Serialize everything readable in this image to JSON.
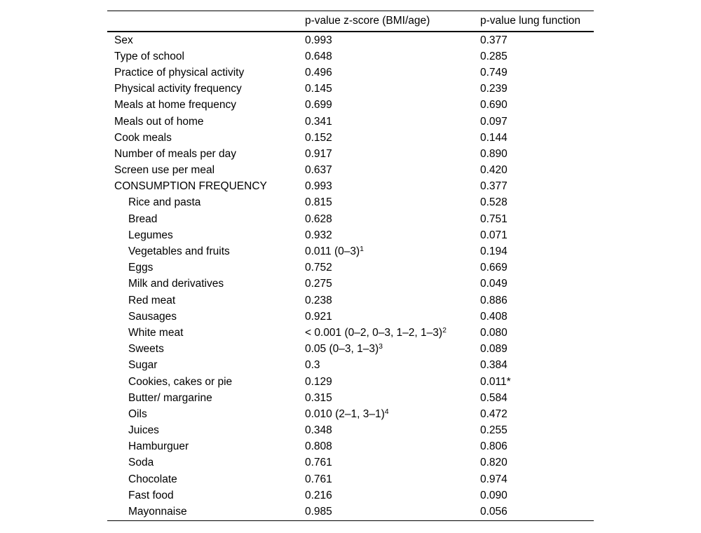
{
  "table": {
    "headers": {
      "variable": "",
      "col_bmi": "p-value z-score (BMI/age)",
      "col_lung": "p-value lung function"
    },
    "rows": [
      {
        "label": "Sex",
        "indent": 0,
        "p_bmi": "0.993",
        "p_lung": "0.377"
      },
      {
        "label": "Type of school",
        "indent": 0,
        "p_bmi": "0.648",
        "p_lung": "0.285"
      },
      {
        "label": "Practice of physical activity",
        "indent": 0,
        "p_bmi": "0.496",
        "p_lung": "0.749"
      },
      {
        "label": "Physical activity frequency",
        "indent": 0,
        "p_bmi": "0.145",
        "p_lung": "0.239"
      },
      {
        "label": "Meals at home frequency",
        "indent": 0,
        "p_bmi": "0.699",
        "p_lung": "0.690"
      },
      {
        "label": "Meals out of home",
        "indent": 0,
        "p_bmi": "0.341",
        "p_lung": "0.097"
      },
      {
        "label": "Cook meals",
        "indent": 0,
        "p_bmi": "0.152",
        "p_lung": "0.144"
      },
      {
        "label": "Number of meals per day",
        "indent": 0,
        "p_bmi": "0.917",
        "p_lung": "0.890"
      },
      {
        "label": "Screen use per meal",
        "indent": 0,
        "p_bmi": "0.637",
        "p_lung": "0.420"
      },
      {
        "label": "CONSUMPTION FREQUENCY",
        "indent": 0,
        "p_bmi": "0.993",
        "p_lung": "0.377"
      },
      {
        "label": "Rice and pasta",
        "indent": 1,
        "p_bmi": "0.815",
        "p_lung": "0.528"
      },
      {
        "label": "Bread",
        "indent": 1,
        "p_bmi": "0.628",
        "p_lung": "0.751"
      },
      {
        "label": "Legumes",
        "indent": 1,
        "p_bmi": "0.932",
        "p_lung": "0.071"
      },
      {
        "label": "Vegetables and fruits",
        "indent": 1,
        "p_bmi": "0.011 (0–3)",
        "p_bmi_sup": "1",
        "p_lung": "0.194"
      },
      {
        "label": "Eggs",
        "indent": 1,
        "p_bmi": "0.752",
        "p_lung": "0.669"
      },
      {
        "label": "Milk and derivatives",
        "indent": 1,
        "p_bmi": "0.275",
        "p_lung": "0.049"
      },
      {
        "label": "Red meat",
        "indent": 1,
        "p_bmi": "0.238",
        "p_lung": "0.886"
      },
      {
        "label": "Sausages",
        "indent": 1,
        "p_bmi": "0.921",
        "p_lung": "0.408"
      },
      {
        "label": "White meat",
        "indent": 1,
        "p_bmi": "< 0.001 (0–2, 0–3, 1–2, 1–3)",
        "p_bmi_sup": "2",
        "p_lung": "0.080"
      },
      {
        "label": "Sweets",
        "indent": 1,
        "p_bmi": "0.05 (0–3, 1–3)",
        "p_bmi_sup": "3",
        "p_lung": "0.089"
      },
      {
        "label": "Sugar",
        "indent": 1,
        "p_bmi": "0.3",
        "p_lung": "0.384"
      },
      {
        "label": "Cookies, cakes or pie",
        "indent": 1,
        "p_bmi": "0.129",
        "p_lung": "0.011*"
      },
      {
        "label": "Butter/ margarine",
        "indent": 1,
        "p_bmi": "0.315",
        "p_lung": "0.584"
      },
      {
        "label": "Oils",
        "indent": 1,
        "p_bmi": "0.010 (2–1, 3–1)",
        "p_bmi_sup": "4",
        "p_lung": "0.472"
      },
      {
        "label": "Juices",
        "indent": 1,
        "p_bmi": "0.348",
        "p_lung": "0.255"
      },
      {
        "label": "Hamburguer",
        "indent": 1,
        "p_bmi": "0.808",
        "p_lung": "0.806"
      },
      {
        "label": "Soda",
        "indent": 1,
        "p_bmi": "0.761",
        "p_lung": "0.820"
      },
      {
        "label": "Chocolate",
        "indent": 1,
        "p_bmi": "0.761",
        "p_lung": "0.974"
      },
      {
        "label": "Fast food",
        "indent": 1,
        "p_bmi": "0.216",
        "p_lung": "0.090"
      },
      {
        "label": "Mayonnaise",
        "indent": 1,
        "p_bmi": "0.985",
        "p_lung": "0.056"
      }
    ],
    "text_color": "#000000",
    "rule_color": "#000000"
  }
}
